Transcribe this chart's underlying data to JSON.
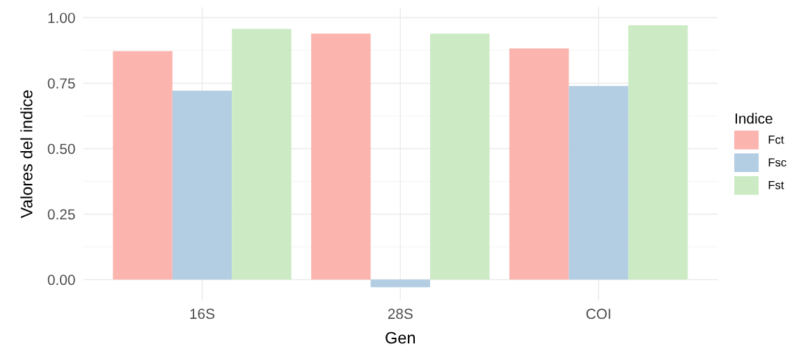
{
  "chart_data": {
    "type": "bar",
    "xlabel": "Gen",
    "ylabel": "Valores del indice",
    "legend_title": "Indice",
    "categories": [
      "16S",
      "28S",
      "COI"
    ],
    "series": [
      {
        "name": "Fct",
        "color": "#fbb4ae",
        "values": [
          0.872,
          0.939,
          0.883
        ]
      },
      {
        "name": "Fsc",
        "color": "#b3cde3",
        "values": [
          0.721,
          -0.029,
          0.739
        ]
      },
      {
        "name": "Fst",
        "color": "#ccebc5",
        "values": [
          0.957,
          0.939,
          0.971
        ]
      }
    ],
    "ylim": [
      -0.08,
      1.04
    ],
    "yticks": [
      {
        "value": 0,
        "label": "0.00"
      },
      {
        "value": 0.125,
        "label": null
      },
      {
        "value": 0.25,
        "label": "0.25"
      },
      {
        "value": 0.375,
        "label": null
      },
      {
        "value": 0.5,
        "label": "0.50"
      },
      {
        "value": 0.625,
        "label": null
      },
      {
        "value": 0.75,
        "label": "0.75"
      },
      {
        "value": 0.875,
        "label": null
      },
      {
        "value": 1,
        "label": "1.00"
      }
    ],
    "grid": true,
    "legend": "right"
  }
}
